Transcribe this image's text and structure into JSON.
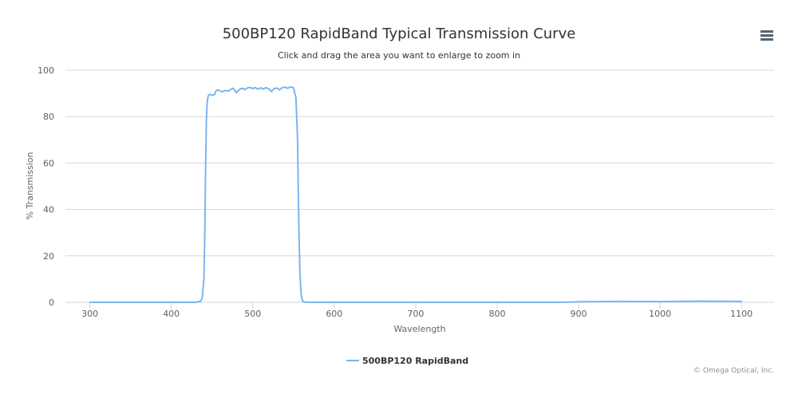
{
  "title": "500BP120 RapidBand Typical Transmission Curve",
  "subtitle": "Click and drag the area you want to enlarge to zoom in",
  "credits": "© Omega Optical, Inc.",
  "menu_icon": "hamburger-menu-icon",
  "colors": {
    "series": "#7cb5ec",
    "grid": "#d8d8d8",
    "axis": "#ccd6eb",
    "text": "#333333"
  },
  "chart_data": {
    "type": "line",
    "title": "500BP120 RapidBand Typical Transmission Curve",
    "subtitle": "Click and drag the area you want to enlarge to zoom in",
    "xlabel": "Wavelength",
    "ylabel": "% Transmission",
    "xlim": [
      270,
      1140
    ],
    "ylim": [
      0,
      100
    ],
    "x_ticks": [
      300,
      400,
      500,
      600,
      700,
      800,
      900,
      1000,
      1100
    ],
    "y_ticks": [
      0,
      20,
      40,
      60,
      80,
      100
    ],
    "grid": "horizontal",
    "legend_position": "bottom-center",
    "series": [
      {
        "name": "500BP120 RapidBand",
        "x": [
          300,
          350,
          400,
          430,
          436,
          438,
          440,
          441,
          442,
          443,
          444,
          445,
          446,
          448,
          450,
          453,
          455,
          458,
          460,
          463,
          466,
          470,
          473,
          476,
          480,
          483,
          485,
          488,
          490,
          493,
          496,
          500,
          503,
          506,
          510,
          513,
          516,
          520,
          523,
          526,
          530,
          533,
          536,
          540,
          543,
          546,
          550,
          553,
          555,
          556,
          557,
          558,
          559,
          560,
          561,
          562,
          564,
          566,
          570,
          600,
          700,
          800,
          880,
          900,
          950,
          1000,
          1050,
          1100
        ],
        "y": [
          0,
          0,
          0,
          0,
          0.5,
          2,
          10,
          28,
          55,
          78,
          86,
          88.5,
          89.3,
          89.6,
          89.2,
          89.5,
          91.2,
          91.5,
          91.0,
          90.7,
          91.3,
          91.0,
          91.8,
          92.2,
          90.3,
          91.5,
          92.0,
          92.2,
          91.6,
          92.3,
          92.6,
          92.1,
          92.5,
          91.9,
          92.4,
          91.8,
          92.5,
          91.9,
          90.8,
          92.0,
          92.3,
          91.5,
          92.5,
          92.7,
          92.2,
          92.8,
          92.5,
          88,
          70,
          45,
          25,
          12,
          5,
          2,
          0.8,
          0.3,
          0.1,
          0,
          0,
          0,
          0,
          0,
          0,
          0.2,
          0.4,
          0.3,
          0.5,
          0.4
        ]
      }
    ]
  }
}
